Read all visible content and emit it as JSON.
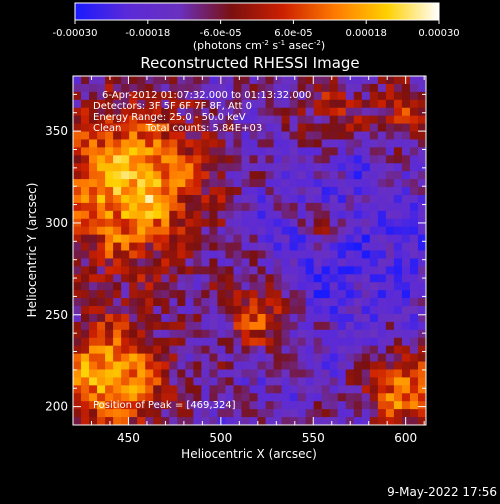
{
  "chart_data": {
    "type": "heatmap",
    "title": "Reconstructed RHESSI Image",
    "xlabel": "Heliocentric X (arcsec)",
    "ylabel": "Heliocentric Y (arcsec)",
    "xlim": [
      420,
      611
    ],
    "ylim": [
      190,
      380
    ],
    "xticks": [
      450,
      500,
      550,
      600
    ],
    "yticks": [
      200,
      250,
      300,
      350
    ],
    "colorbar": {
      "range": [
        -0.0003,
        0.0003
      ],
      "tick_labels": [
        "-0.00030",
        "-0.00018",
        "-6.0e-05",
        "6.0e-05",
        "0.00018",
        "0.00030"
      ],
      "unit_parts": [
        "(photons cm",
        "-2",
        " s",
        "-1",
        " asec",
        "-2",
        ")"
      ]
    },
    "annotations": [
      "6-Apr-2012 01:07:32.000 to 01:13:32.000",
      "Detectors: 3F 5F 6F 7F 8F, Att 0",
      "Energy Range: 25.0 - 50.0 keV",
      "Clean",
      "Total counts: 5.84E+03"
    ],
    "peak_text": "Position of Peak = [469,324]",
    "peak": [
      469,
      324
    ],
    "grid": false
  },
  "footer": {
    "timestamp": "9-May-2022 17:56"
  },
  "colors": {
    "background": "#000000",
    "colormap": [
      "#1a1aff",
      "#5a2ad8",
      "#6a30c0",
      "#7a1010",
      "#cc2000",
      "#ff7a00",
      "#ffd000",
      "#ffffff"
    ]
  }
}
